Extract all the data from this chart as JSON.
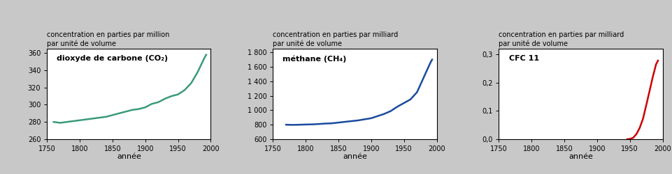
{
  "bg_color": "#c8c8c8",
  "plot_bg_color": "#ffffff",
  "panel1": {
    "ylabel_line1": "concentration en parties par million",
    "ylabel_line2": "par unité de volume",
    "xlabel": "année",
    "label": "dioxyde de carbone (CO₂)",
    "color": "#3a9a7a",
    "xlim": [
      1750,
      2000
    ],
    "ylim": [
      260,
      365
    ],
    "yticks": [
      260,
      280,
      300,
      320,
      340,
      360
    ],
    "xticks": [
      1750,
      1800,
      1850,
      1900,
      1950,
      2000
    ],
    "x": [
      1760,
      1770,
      1780,
      1790,
      1800,
      1810,
      1820,
      1830,
      1840,
      1850,
      1860,
      1870,
      1880,
      1890,
      1900,
      1910,
      1920,
      1930,
      1940,
      1950,
      1960,
      1970,
      1980,
      1990,
      1993
    ],
    "y": [
      280,
      279,
      280,
      281,
      282,
      283,
      284,
      285,
      286,
      288,
      290,
      292,
      294,
      295,
      297,
      301,
      303,
      307,
      310,
      312,
      317,
      325,
      338,
      354,
      358
    ]
  },
  "panel2": {
    "ylabel_line1": "concentration en parties par milliard",
    "ylabel_line2": "par unité de volume",
    "xlabel": "année",
    "label": "méthane (CH₄)",
    "color": "#1a4a9e",
    "xlim": [
      1750,
      2000
    ],
    "ylim": [
      600,
      1850
    ],
    "yticks": [
      600,
      800,
      1000,
      1200,
      1400,
      1600,
      1800
    ],
    "xticks": [
      1750,
      1800,
      1850,
      1900,
      1950,
      2000
    ],
    "x": [
      1770,
      1780,
      1790,
      1800,
      1810,
      1820,
      1830,
      1840,
      1850,
      1860,
      1870,
      1880,
      1890,
      1900,
      1910,
      1920,
      1930,
      1940,
      1950,
      1960,
      1970,
      1980,
      1990,
      1993
    ],
    "y": [
      800,
      798,
      800,
      803,
      805,
      810,
      816,
      820,
      830,
      840,
      850,
      860,
      875,
      890,
      920,
      950,
      990,
      1050,
      1100,
      1150,
      1250,
      1450,
      1650,
      1700
    ]
  },
  "panel3": {
    "ylabel_line1": "concentration en parties par milliard",
    "ylabel_line2": "par unité de volume",
    "xlabel": "année",
    "label": "CFC 11",
    "color": "#cc0000",
    "xlim": [
      1750,
      2000
    ],
    "ylim": [
      0.0,
      0.32
    ],
    "yticks": [
      0.0,
      0.1,
      0.2,
      0.3
    ],
    "xticks": [
      1750,
      1800,
      1850,
      1900,
      1950,
      2000
    ],
    "x": [
      1946,
      1950,
      1955,
      1960,
      1965,
      1970,
      1975,
      1980,
      1985,
      1990,
      1993
    ],
    "y": [
      0.0,
      0.001,
      0.005,
      0.018,
      0.04,
      0.072,
      0.12,
      0.17,
      0.22,
      0.265,
      0.278
    ]
  }
}
